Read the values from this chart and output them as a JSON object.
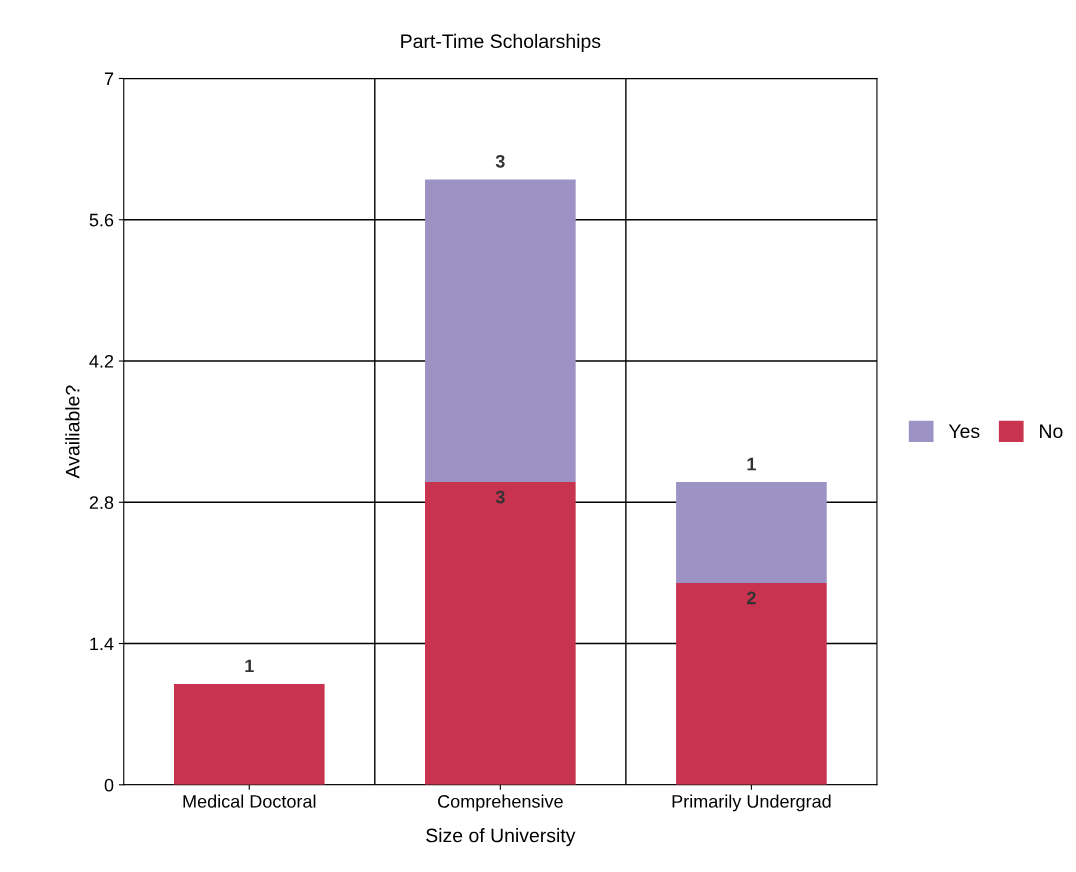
{
  "chart_data": {
    "type": "bar",
    "title": "Part-Time Scholarships",
    "xlabel": "Size of University",
    "ylabel": "Availiable?",
    "categories": [
      "Medical Doctoral",
      "Comprehensive",
      "Primarily Undergrad"
    ],
    "stacked": true,
    "series": [
      {
        "name": "No",
        "color": "#c8344f",
        "values": [
          1,
          3,
          2
        ]
      },
      {
        "name": "Yes",
        "color": "#9d92c4",
        "values": [
          null,
          3,
          1
        ]
      }
    ],
    "ylim": [
      0,
      7
    ],
    "yticks": [
      0,
      1.4,
      2.8,
      4.2,
      5.6,
      7
    ],
    "grid": true,
    "legend": "right",
    "data_labels": true
  }
}
